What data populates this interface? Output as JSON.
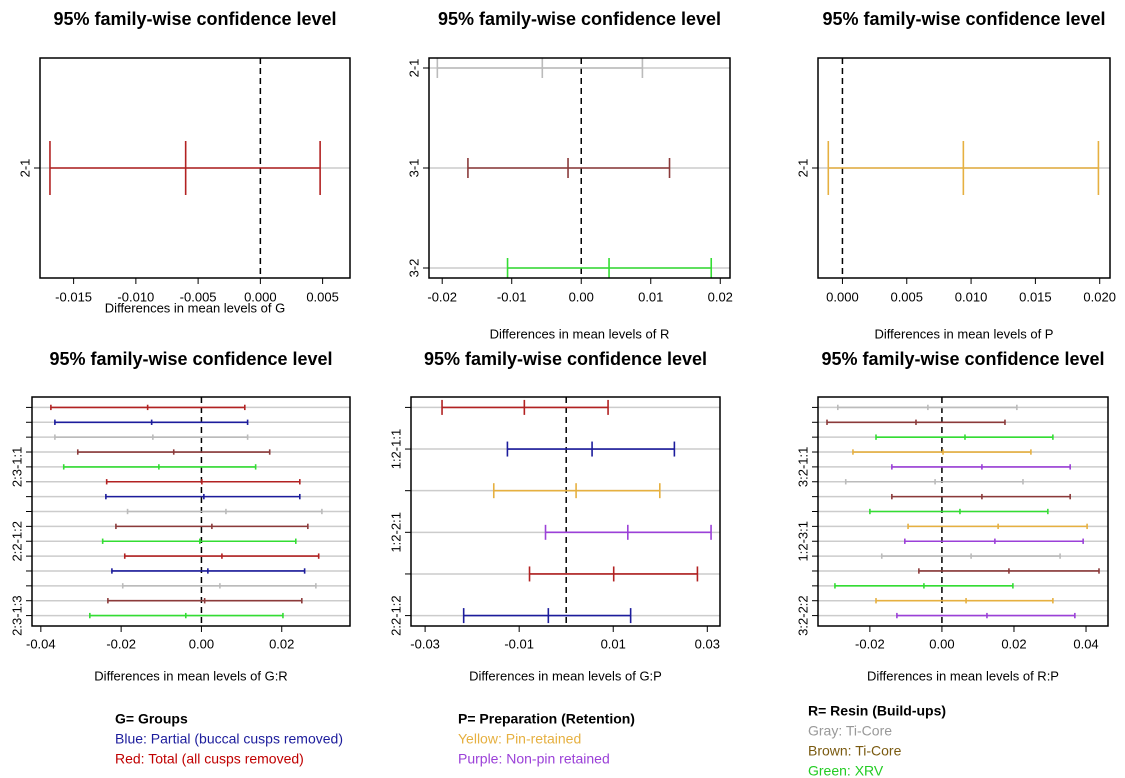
{
  "chart_data": [
    {
      "type": "interval",
      "title": "95% family-wise confidence level",
      "xlabel": "Differences in mean levels of G",
      "categories": [
        "2-1"
      ],
      "lower": [
        -0.0169
      ],
      "estimate": [
        -0.006
      ],
      "upper": [
        0.0048
      ],
      "colors": [
        "#b22222"
      ],
      "xlim": [
        -0.0177,
        0.0072
      ],
      "xticks": [
        -0.015,
        {
          "value": -0.01,
          "label": "-0.010"
        },
        -0.005,
        {
          "value": 0,
          "label": "0.000"
        },
        0.005
      ],
      "refline": 0,
      "grid": true
    },
    {
      "type": "interval",
      "title": "95% family-wise confidence level",
      "xlabel": "Differences in mean levels of R",
      "categories": [
        "2-1",
        "3-1",
        "3-2"
      ],
      "lower": [
        -0.0207,
        -0.0163,
        -0.0106
      ],
      "estimate": [
        -0.0056,
        -0.0019,
        0.004
      ],
      "upper": [
        0.0088,
        0.0127,
        0.0187
      ],
      "colors": [
        "#bbbbbb",
        "#8b3a3a",
        "#33dd33"
      ],
      "xlim": [
        -0.0219,
        0.0214
      ],
      "xticks": [
        -0.02,
        -0.01,
        {
          "value": 0,
          "label": "0.00"
        },
        0.01,
        0.02
      ],
      "refline": 0,
      "grid": true
    },
    {
      "type": "interval",
      "title": "95% family-wise confidence level",
      "xlabel": "Differences in mean levels of P",
      "categories": [
        "2-1"
      ],
      "lower": [
        -0.0011
      ],
      "estimate": [
        0.0094
      ],
      "upper": [
        0.0199
      ],
      "colors": [
        "#e6b040"
      ],
      "xlim": [
        -0.0019,
        0.0208
      ],
      "xticks": [
        {
          "value": 0,
          "label": "0.000"
        },
        0.005,
        {
          "value": 0.01,
          "label": "0.010"
        },
        0.015,
        {
          "value": 0.02,
          "label": "0.020"
        }
      ],
      "refline": 0,
      "grid": true
    },
    {
      "type": "interval",
      "title": "95% family-wise confidence level",
      "xlabel": "Differences in mean levels of G:R",
      "categories": [
        null,
        null,
        null,
        null,
        "2:3-1:1",
        null,
        null,
        null,
        null,
        "2:2-1:2",
        null,
        null,
        null,
        null,
        "2:3-1:3"
      ],
      "lower": [
        -0.0375,
        -0.0365,
        -0.0365,
        -0.0308,
        -0.0343,
        -0.0236,
        -0.0238,
        -0.0184,
        -0.0213,
        -0.0246,
        -0.0191,
        -0.0223,
        -0.0196,
        -0.0233,
        -0.0278
      ],
      "estimate": [
        -0.0134,
        -0.0124,
        -0.0121,
        -0.0069,
        -0.0106,
        0.0001,
        0.0006,
        0.0061,
        0.0026,
        -0.0004,
        0.0051,
        0.0016,
        0.0046,
        0.0008,
        -0.0039
      ],
      "upper": [
        0.0108,
        0.0115,
        0.0115,
        0.017,
        0.0135,
        0.0245,
        0.0245,
        0.03,
        0.0265,
        0.0235,
        0.0292,
        0.0257,
        0.0285,
        0.025,
        0.0203
      ],
      "colors": [
        "#b22222",
        "#1c1c9c",
        "#bbbbbb",
        "#8b3a3a",
        "#33dd33",
        "#b22222",
        "#1c1c9c",
        "#bbbbbb",
        "#8b3a3a",
        "#33dd33",
        "#b22222",
        "#1c1c9c",
        "#bbbbbb",
        "#8b3a3a",
        "#33dd33"
      ],
      "xlim": [
        -0.0422,
        0.037
      ],
      "xticks": [
        -0.04,
        -0.02,
        {
          "value": 0,
          "label": "0.00"
        },
        0.02
      ],
      "refline": 0,
      "grid": true
    },
    {
      "type": "interval",
      "title": "95% family-wise confidence level",
      "xlabel": "Differences in mean levels of G:P",
      "categories": [
        null,
        "1:2-1:1",
        null,
        "1:2-2:1",
        null,
        "2:2-1:2"
      ],
      "lower": [
        -0.0264,
        -0.0125,
        -0.0154,
        -0.0044,
        -0.0078,
        -0.0218
      ],
      "estimate": [
        -0.0089,
        0.0055,
        0.0021,
        0.0131,
        0.0101,
        -0.0038
      ],
      "upper": [
        0.0089,
        0.023,
        0.0199,
        0.0308,
        0.0279,
        0.0137
      ],
      "colors": [
        "#b22222",
        "#1c1c9c",
        "#e6b040",
        "#9b40d8",
        "#b22222",
        "#1c1c9c"
      ],
      "xlim": [
        -0.033,
        0.0327
      ],
      "xticks": [
        -0.03,
        -0.01,
        0.01,
        0.03
      ],
      "refline": 0,
      "grid": true
    },
    {
      "type": "interval",
      "title": "95% family-wise confidence level",
      "xlabel": "Differences in mean levels of R:P",
      "categories": [
        null,
        null,
        null,
        null,
        "3:2-1:1",
        null,
        null,
        null,
        null,
        "1:2-3:1",
        null,
        null,
        null,
        null,
        "3:2-2:2"
      ],
      "lower": [
        -0.0289,
        -0.0319,
        -0.0183,
        -0.0247,
        -0.0139,
        -0.0267,
        -0.0139,
        -0.02,
        -0.0094,
        -0.0103,
        -0.0167,
        -0.0064,
        -0.0297,
        -0.0183,
        -0.0125
      ],
      "estimate": [
        -0.0039,
        -0.0072,
        0.0064,
        0.0003,
        0.0111,
        -0.0019,
        0.0111,
        0.005,
        0.0156,
        0.0147,
        0.0081,
        0.0186,
        -0.005,
        0.0067,
        0.0125
      ],
      "upper": [
        0.0208,
        0.0175,
        0.0308,
        0.0247,
        0.0356,
        0.0225,
        0.0356,
        0.0294,
        0.0403,
        0.0392,
        0.0328,
        0.0436,
        0.0197,
        0.0308,
        0.0369
      ],
      "colors": [
        "#bbbbbb",
        "#8b3a3a",
        "#33dd33",
        "#e6b040",
        "#9b40d8",
        "#bbbbbb",
        "#8b3a3a",
        "#33dd33",
        "#e6b040",
        "#9b40d8",
        "#bbbbbb",
        "#8b3a3a",
        "#33dd33",
        "#e6b040",
        "#9b40d8"
      ],
      "xlim": [
        -0.0344,
        0.0461
      ],
      "xticks": [
        -0.02,
        {
          "value": 0,
          "label": "0.00"
        },
        0.02,
        0.04
      ],
      "refline": 0,
      "grid": true
    }
  ],
  "notes": [
    {
      "title": "G= Groups",
      "items": [
        {
          "text": "Blue: Partial (buccal cusps removed)",
          "color": "#1c1c9c"
        },
        {
          "text": "Red: Total (all cusps removed)",
          "color": "#c00000"
        }
      ]
    },
    {
      "title": "P= Preparation (Retention)",
      "items": [
        {
          "text": "Yellow: Pin-retained",
          "color": "#e6b040"
        },
        {
          "text": "Purple: Non-pin retained",
          "color": "#9b40d8"
        }
      ]
    },
    {
      "title": "R= Resin (Build-ups)",
      "items": [
        {
          "text": "Gray: Ti-Core",
          "color": "#999999"
        },
        {
          "text": "Brown: Ti-Core",
          "color": "#7a5a10"
        },
        {
          "text": "Green: XRV",
          "color": "#22cc22"
        }
      ]
    }
  ]
}
